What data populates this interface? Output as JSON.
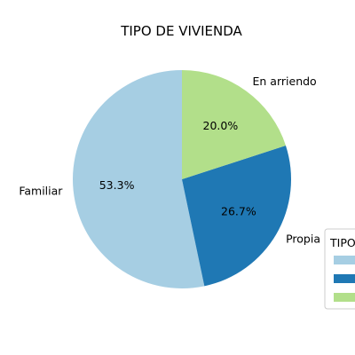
{
  "chart_data": {
    "type": "pie",
    "title": "TIPO DE VIVIENDA",
    "categories": [
      "Familiar",
      "Propia",
      "En arriendo"
    ],
    "values": [
      53.3,
      26.7,
      20.0
    ],
    "percent_labels": [
      "53.3%",
      "26.7%",
      "20.0%"
    ],
    "colors": [
      "#a6cee3",
      "#1f78b4",
      "#b2df8a"
    ],
    "start_angle_deg": 90,
    "direction": "counterclockwise",
    "legend": {
      "title": "TIPO",
      "placement": "right, partially cut off"
    }
  }
}
